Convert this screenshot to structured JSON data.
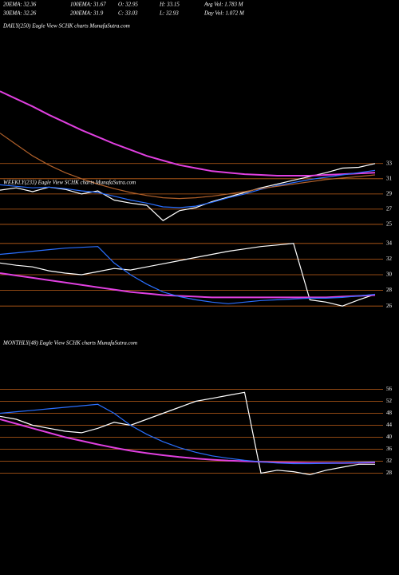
{
  "header": {
    "row1": [
      "20EMA: 32.36",
      "100EMA: 31.67",
      "O: 32.95",
      "H: 33.15",
      "Avg Vol: 1.783 M"
    ],
    "row2": [
      "30EMA: 32.26",
      "200EMA: 31.9",
      "C: 33.03",
      "L: 32.93",
      "Day Vol: 1.072 M"
    ]
  },
  "chart_data": [
    {
      "type": "line",
      "title": "DAILY(250) Eagle  View  SCHK charts MunafaSutra.com",
      "ylim": [
        23,
        44
      ],
      "yticks": [
        25,
        27,
        29,
        31,
        33
      ],
      "grid": true,
      "grid_color": "#c0601a",
      "series": [
        {
          "color": "#ffffff",
          "values": [
            29.5,
            29.8,
            29.3,
            29.9,
            29.6,
            29.0,
            29.4,
            28.2,
            27.8,
            27.5,
            25.5,
            26.8,
            27.2,
            28.0,
            28.6,
            29.2,
            29.8,
            30.3,
            30.8,
            31.3,
            31.8,
            32.4,
            32.5,
            33.0
          ]
        },
        {
          "color": "#e040e0",
          "values": [
            42.5,
            41.5,
            40.5,
            39.4,
            38.4,
            37.4,
            36.5,
            35.6,
            34.8,
            34.0,
            33.4,
            32.8,
            32.4,
            32.0,
            31.8,
            31.6,
            31.5,
            31.4,
            31.4,
            31.4,
            31.5,
            31.6,
            31.7,
            31.8
          ]
        },
        {
          "color": "#2a6fff",
          "values": [
            30.2,
            30.0,
            29.8,
            29.9,
            29.7,
            29.4,
            29.2,
            28.7,
            28.2,
            27.8,
            27.3,
            27.2,
            27.4,
            27.9,
            28.5,
            29.0,
            29.6,
            30.1,
            30.5,
            30.9,
            31.2,
            31.5,
            31.8,
            32.1
          ]
        },
        {
          "color": "#b0602a",
          "values": [
            37,
            35.5,
            34,
            32.8,
            31.8,
            31,
            30.3,
            29.7,
            29.2,
            28.8,
            28.5,
            28.4,
            28.5,
            28.7,
            29.0,
            29.3,
            29.7,
            30.0,
            30.3,
            30.6,
            30.9,
            31.1,
            31.3,
            31.5
          ]
        }
      ]
    },
    {
      "type": "line",
      "title": "WEEKLY(233) Eagle  View  SCHK charts MunafaSutra.com",
      "ylim": [
        25,
        35
      ],
      "yticks": [
        26,
        28,
        30,
        32,
        34
      ],
      "grid": true,
      "grid_color": "#c0601a",
      "series": [
        {
          "color": "#ffffff",
          "values": [
            31.5,
            31.2,
            31.0,
            30.5,
            30.2,
            30.0,
            30.4,
            30.8,
            30.6,
            31.0,
            31.4,
            31.8,
            32.2,
            32.6,
            33.0,
            33.3,
            33.6,
            33.8,
            34.0,
            26.8,
            26.5,
            26.0,
            26.8,
            27.5
          ]
        },
        {
          "color": "#e040e0",
          "values": [
            30.2,
            29.9,
            29.6,
            29.3,
            29.0,
            28.7,
            28.4,
            28.1,
            27.8,
            27.6,
            27.4,
            27.3,
            27.2,
            27.1,
            27.1,
            27.1,
            27.1,
            27.1,
            27.1,
            27.1,
            27.1,
            27.2,
            27.3,
            27.4
          ]
        },
        {
          "color": "#2a6fff",
          "values": [
            32.6,
            32.8,
            33.0,
            33.2,
            33.4,
            33.5,
            33.6,
            31.5,
            30.0,
            28.8,
            27.8,
            27.2,
            26.8,
            26.5,
            26.3,
            26.5,
            26.7,
            26.8,
            26.9,
            27.0,
            27.0,
            27.1,
            27.3,
            27.5
          ]
        }
      ]
    },
    {
      "type": "line",
      "title": "MONTHLY(48) Eagle  View  SCHK charts MunafaSutra.com",
      "ylim": [
        26,
        58
      ],
      "yticks": [
        28,
        32,
        36,
        40,
        44,
        48,
        52,
        56
      ],
      "grid": true,
      "grid_color": "#c0601a",
      "series": [
        {
          "color": "#ffffff",
          "values": [
            47,
            46,
            44,
            43,
            42,
            41.5,
            43,
            45,
            44,
            46,
            48,
            50,
            52,
            53,
            54,
            55,
            28,
            29,
            28.5,
            27.5,
            29,
            30,
            31,
            31
          ]
        },
        {
          "color": "#e040e0",
          "values": [
            46,
            44.5,
            43,
            41.5,
            40,
            38.8,
            37.6,
            36.5,
            35.5,
            34.7,
            34,
            33.4,
            32.9,
            32.5,
            32.2,
            32,
            31.8,
            31.6,
            31.5,
            31.4,
            31.4,
            31.4,
            31.5,
            31.6
          ]
        },
        {
          "color": "#2a6fff",
          "values": [
            48,
            48.5,
            49,
            49.5,
            50,
            50.5,
            51,
            48,
            44,
            41,
            38.5,
            36.5,
            35,
            33.8,
            33,
            32.3,
            31.8,
            31.4,
            31.2,
            31.2,
            31.3,
            31.4,
            31.6,
            31.8
          ]
        }
      ]
    }
  ]
}
